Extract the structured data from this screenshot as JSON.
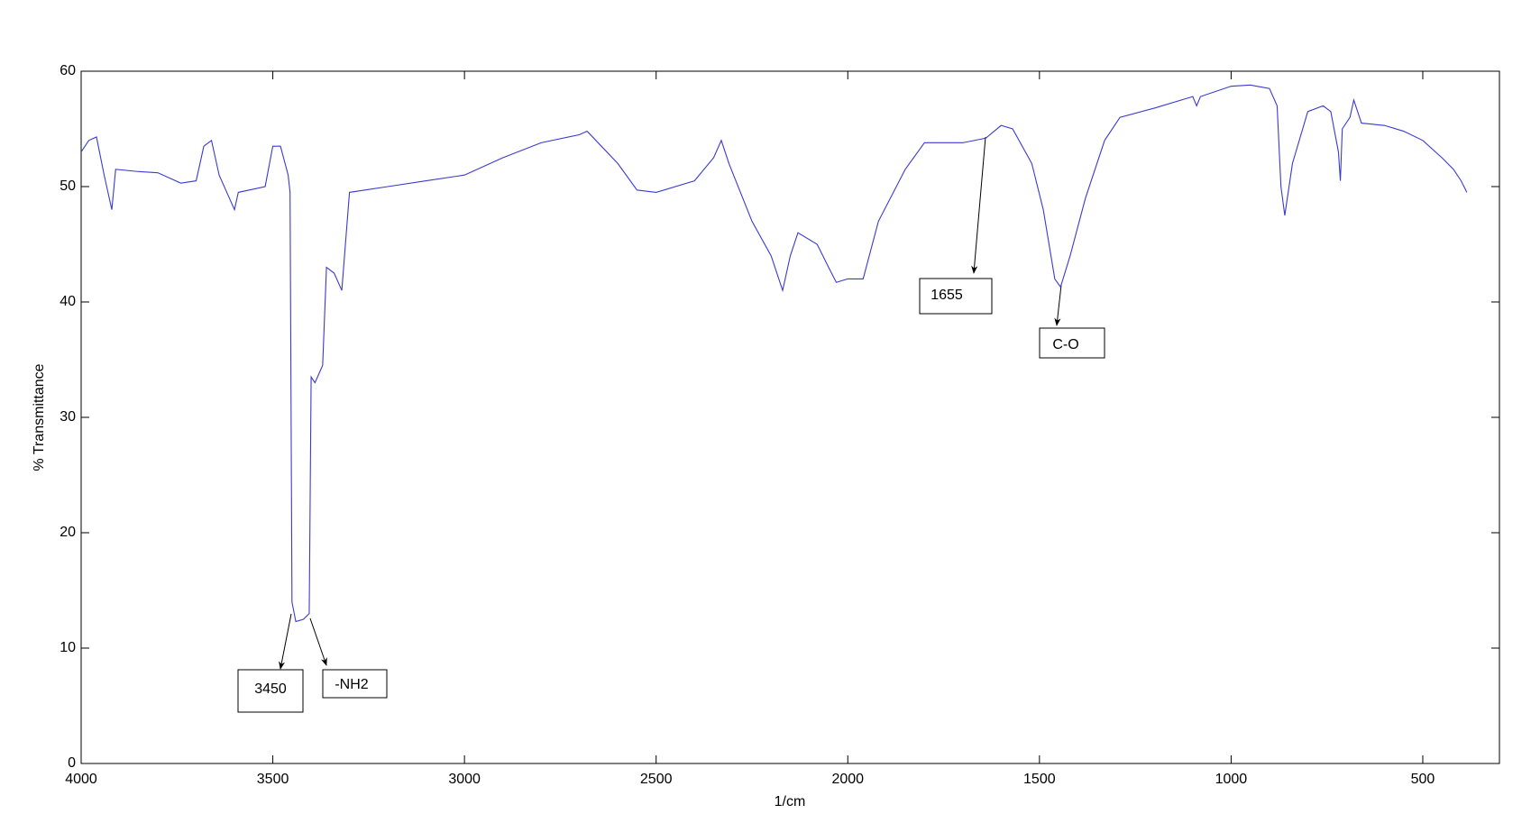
{
  "chart_data": {
    "type": "line",
    "xlabel": "1/cm",
    "ylabel": "% Transmittance",
    "xlim": [
      4000,
      300
    ],
    "ylim": [
      0,
      60
    ],
    "xticks": [
      4000,
      3500,
      3000,
      2500,
      2000,
      1500,
      1000,
      500
    ],
    "yticks": [
      0,
      10,
      20,
      30,
      40,
      50,
      60
    ],
    "color": "#3a3ad0",
    "x": [
      4000,
      3980,
      3960,
      3940,
      3920,
      3910,
      3850,
      3800,
      3740,
      3700,
      3680,
      3660,
      3640,
      3600,
      3590,
      3520,
      3500,
      3480,
      3460,
      3455,
      3450,
      3440,
      3420,
      3405,
      3400,
      3390,
      3370,
      3360,
      3340,
      3320,
      3300,
      3200,
      3100,
      3000,
      2900,
      2800,
      2700,
      2680,
      2600,
      2550,
      2500,
      2400,
      2350,
      2330,
      2310,
      2250,
      2200,
      2170,
      2150,
      2130,
      2080,
      2050,
      2030,
      2000,
      1960,
      1920,
      1850,
      1800,
      1750,
      1700,
      1640,
      1600,
      1570,
      1520,
      1490,
      1460,
      1445,
      1420,
      1380,
      1330,
      1290,
      1200,
      1100,
      1090,
      1080,
      1000,
      950,
      900,
      880,
      870,
      860,
      840,
      800,
      760,
      740,
      720,
      715,
      710,
      690,
      680,
      660,
      600,
      550,
      500,
      450,
      420,
      400,
      385
    ],
    "values": [
      53,
      54,
      54.3,
      51,
      48,
      51.5,
      51.3,
      51.2,
      50.3,
      50.5,
      53.5,
      54,
      51,
      48,
      49.5,
      50,
      53.5,
      53.5,
      51,
      49.5,
      14,
      12.3,
      12.5,
      13,
      33.5,
      33,
      34.5,
      43,
      42.5,
      41,
      49.5,
      50,
      50.5,
      51,
      52.5,
      53.8,
      54.5,
      54.8,
      52,
      49.7,
      49.5,
      50.5,
      52.5,
      54,
      52,
      47,
      44,
      41,
      44,
      46,
      45,
      43,
      41.7,
      42,
      42,
      47,
      51.5,
      53.8,
      53.8,
      53.8,
      54.2,
      55.3,
      55,
      52,
      48,
      42,
      41.3,
      44,
      49,
      54,
      56,
      56.8,
      57.8,
      57,
      57.8,
      58.7,
      58.8,
      58.5,
      57,
      50,
      47.5,
      52,
      56.5,
      57,
      56.5,
      53,
      50.5,
      55,
      56,
      57.5,
      55.5,
      55.3,
      54.8,
      54,
      52.5,
      51.5,
      50.5,
      49.5
    ],
    "annotations": [
      "3450",
      "-NH2",
      "1655",
      "C-O"
    ]
  }
}
